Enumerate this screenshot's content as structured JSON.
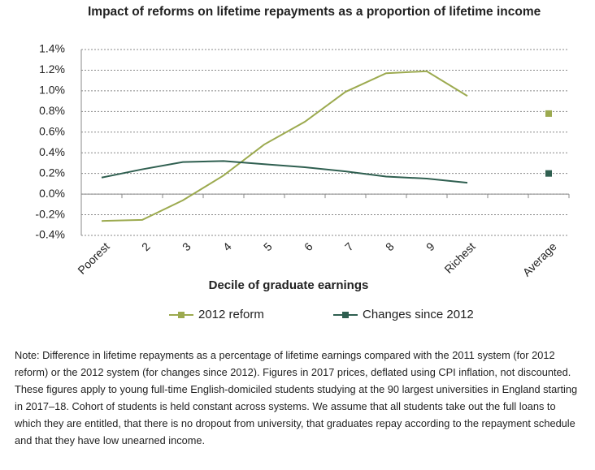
{
  "chart_data": {
    "type": "line",
    "title": "Impact of reforms on lifetime repayments as a proportion of lifetime income",
    "x_label": "Decile of graduate earnings",
    "categories": [
      "Poorest",
      "2",
      "3",
      "4",
      "5",
      "6",
      "7",
      "8",
      "9",
      "Richest",
      null,
      "Average"
    ],
    "series": [
      {
        "name": "2012 reform",
        "color": "#9caa4f",
        "values": [
          -0.26,
          -0.25,
          -0.06,
          0.18,
          0.48,
          0.7,
          0.99,
          1.17,
          1.19,
          0.95,
          null,
          0.78
        ]
      },
      {
        "name": "Changes since 2012",
        "color": "#2f5f50",
        "values": [
          0.16,
          0.24,
          0.31,
          0.32,
          0.29,
          0.26,
          0.22,
          0.17,
          0.15,
          0.11,
          null,
          0.2
        ]
      }
    ],
    "ylim": [
      -0.4,
      1.4
    ],
    "yticks": [
      {
        "value": -0.4,
        "label": "-0.4%"
      },
      {
        "value": -0.2,
        "label": "-0.2%"
      },
      {
        "value": 0,
        "label": "0.0%"
      },
      {
        "value": 0.2,
        "label": "0.2%"
      },
      {
        "value": 0.4,
        "label": "0.4%"
      },
      {
        "value": 0.6,
        "label": "0.6%"
      },
      {
        "value": 0.8,
        "label": "0.8%"
      },
      {
        "value": 1.0,
        "label": "1.0%"
      },
      {
        "value": 1.2,
        "label": "1.2%"
      },
      {
        "value": 1.4,
        "label": "1.4%"
      }
    ],
    "grid": true,
    "legend": "bottom",
    "note": "Note: Difference in lifetime repayments as a percentage of lifetime earnings compared with the 2011 system (for 2012 reform) or the 2012 system (for changes since 2012). Figures in 2017 prices, deflated using CPI inflation, not discounted. These figures apply to young full-time English-domiciled students studying at the 90 largest universities in England starting in 2017–18. Cohort of students is held constant across systems. We assume that all students take out the full loans to which they are entitled, that there is no dropout from university, that graduates repay according to the repayment schedule and that they have low unearned income."
  }
}
